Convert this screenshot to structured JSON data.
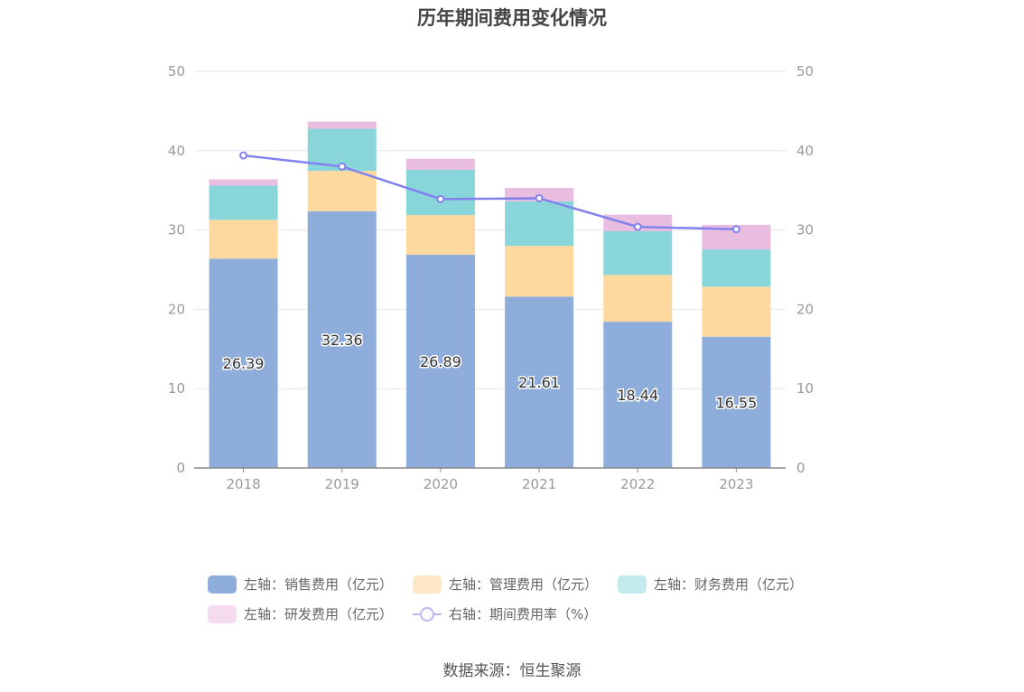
{
  "chart_data": {
    "type": "bar",
    "stacked": true,
    "title": "历年期间费用变化情况",
    "categories": [
      "2018",
      "2019",
      "2020",
      "2021",
      "2022",
      "2023"
    ],
    "left_axis": {
      "min": 0,
      "max": 50,
      "ticks": [
        "0",
        "10",
        "20",
        "30",
        "40",
        "50"
      ]
    },
    "right_axis": {
      "min": 0,
      "max": 50,
      "ticks": [
        "0",
        "10",
        "20",
        "30",
        "40",
        "50"
      ]
    },
    "grid": true,
    "series": [
      {
        "name": "左轴：销售费用（亿元）",
        "axis": "left",
        "kind": "bar",
        "color": "#8eadda",
        "values": [
          26.39,
          32.36,
          26.89,
          21.61,
          18.44,
          16.55
        ],
        "labels": [
          "26.39",
          "32.36",
          "26.89",
          "21.61",
          "18.44",
          "16.55"
        ]
      },
      {
        "name": "左轴：管理费用（亿元）",
        "axis": "left",
        "kind": "bar",
        "color": "#fdd9a0",
        "values": [
          4.9,
          5.1,
          5.0,
          6.4,
          5.9,
          6.3
        ]
      },
      {
        "name": "左轴：财务费用（亿元）",
        "axis": "left",
        "kind": "bar",
        "color": "#88d5da",
        "values": [
          4.3,
          5.3,
          5.7,
          5.6,
          5.5,
          4.7
        ]
      },
      {
        "name": "左轴：研发费用（亿元）",
        "axis": "left",
        "kind": "bar",
        "color": "#e9bde0",
        "values": [
          0.8,
          0.9,
          1.4,
          1.7,
          2.1,
          3.1
        ]
      },
      {
        "name": "右轴：期间费用率（%）",
        "axis": "right",
        "kind": "line",
        "color": "#8281ee",
        "values": [
          39.4,
          38.0,
          33.9,
          34.0,
          30.4,
          30.1
        ]
      }
    ],
    "legend_position": "bottom"
  },
  "legend_colors": {
    "sales": "#8eadda",
    "admin": "#fde7c7",
    "finance": "#c3eaec",
    "rd": "#f4dcee"
  },
  "source": "数据来源：恒生聚源"
}
